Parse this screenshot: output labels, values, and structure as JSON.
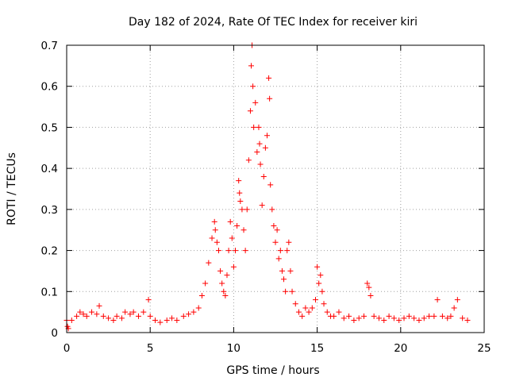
{
  "chart_data": {
    "type": "scatter",
    "title": "Day 182 of 2024, Rate Of TEC Index for receiver kiri",
    "xlabel": "GPS time / hours",
    "ylabel": "ROTI / TECUs",
    "xlim": [
      0,
      25
    ],
    "ylim": [
      0,
      0.7
    ],
    "xticks": [
      0,
      5,
      10,
      15,
      20,
      25
    ],
    "yticks": [
      0,
      0.1,
      0.2,
      0.3,
      0.4,
      0.5,
      0.6,
      0.7
    ],
    "grid": true,
    "marker": "+",
    "color": "#ff0000",
    "series": [
      {
        "name": "ROTI",
        "x": [
          0.0,
          0.05,
          0.1,
          0.3,
          0.6,
          0.8,
          1.0,
          1.2,
          1.5,
          1.8,
          1.95,
          2.2,
          2.5,
          2.8,
          3.0,
          3.3,
          3.5,
          3.8,
          4.0,
          4.3,
          4.6,
          4.9,
          5.0,
          5.3,
          5.6,
          6.0,
          6.3,
          6.6,
          7.0,
          7.3,
          7.6,
          7.9,
          8.1,
          8.3,
          8.5,
          8.7,
          8.85,
          8.9,
          9.0,
          9.1,
          9.2,
          9.3,
          9.4,
          9.5,
          9.6,
          9.7,
          9.8,
          9.9,
          10.0,
          10.1,
          10.2,
          10.3,
          10.35,
          10.4,
          10.5,
          10.6,
          10.7,
          10.8,
          10.9,
          11.0,
          11.05,
          11.1,
          11.15,
          11.2,
          11.3,
          11.4,
          11.5,
          11.55,
          11.6,
          11.7,
          11.8,
          11.9,
          12.0,
          12.1,
          12.15,
          12.2,
          12.3,
          12.4,
          12.5,
          12.6,
          12.7,
          12.8,
          12.9,
          13.0,
          13.1,
          13.2,
          13.3,
          13.4,
          13.5,
          13.7,
          13.9,
          14.1,
          14.3,
          14.5,
          14.7,
          14.9,
          15.0,
          15.1,
          15.2,
          15.3,
          15.4,
          15.6,
          15.8,
          16.0,
          16.3,
          16.6,
          16.9,
          17.2,
          17.5,
          17.8,
          18.0,
          18.1,
          18.2,
          18.4,
          18.7,
          19.0,
          19.3,
          19.6,
          19.9,
          20.2,
          20.5,
          20.8,
          21.1,
          21.4,
          21.7,
          22.0,
          22.2,
          22.5,
          22.8,
          23.0,
          23.2,
          23.4,
          23.7,
          24.0
        ],
        "y": [
          0.03,
          0.015,
          0.01,
          0.03,
          0.04,
          0.05,
          0.045,
          0.04,
          0.05,
          0.045,
          0.065,
          0.04,
          0.035,
          0.03,
          0.04,
          0.035,
          0.05,
          0.045,
          0.05,
          0.04,
          0.05,
          0.08,
          0.04,
          0.03,
          0.025,
          0.03,
          0.035,
          0.03,
          0.04,
          0.045,
          0.05,
          0.06,
          0.09,
          0.12,
          0.17,
          0.23,
          0.27,
          0.25,
          0.22,
          0.2,
          0.15,
          0.12,
          0.1,
          0.09,
          0.14,
          0.2,
          0.27,
          0.23,
          0.16,
          0.2,
          0.26,
          0.37,
          0.34,
          0.32,
          0.3,
          0.25,
          0.2,
          0.3,
          0.42,
          0.54,
          0.65,
          0.7,
          0.6,
          0.5,
          0.56,
          0.44,
          0.5,
          0.46,
          0.41,
          0.31,
          0.38,
          0.45,
          0.48,
          0.62,
          0.57,
          0.36,
          0.3,
          0.26,
          0.22,
          0.25,
          0.18,
          0.2,
          0.15,
          0.13,
          0.1,
          0.2,
          0.22,
          0.15,
          0.1,
          0.07,
          0.05,
          0.04,
          0.06,
          0.05,
          0.06,
          0.08,
          0.16,
          0.12,
          0.14,
          0.1,
          0.07,
          0.05,
          0.04,
          0.04,
          0.05,
          0.035,
          0.04,
          0.03,
          0.035,
          0.04,
          0.12,
          0.11,
          0.09,
          0.04,
          0.035,
          0.03,
          0.04,
          0.035,
          0.03,
          0.035,
          0.04,
          0.035,
          0.03,
          0.035,
          0.04,
          0.04,
          0.08,
          0.04,
          0.035,
          0.04,
          0.06,
          0.08,
          0.035,
          0.03
        ]
      }
    ]
  }
}
